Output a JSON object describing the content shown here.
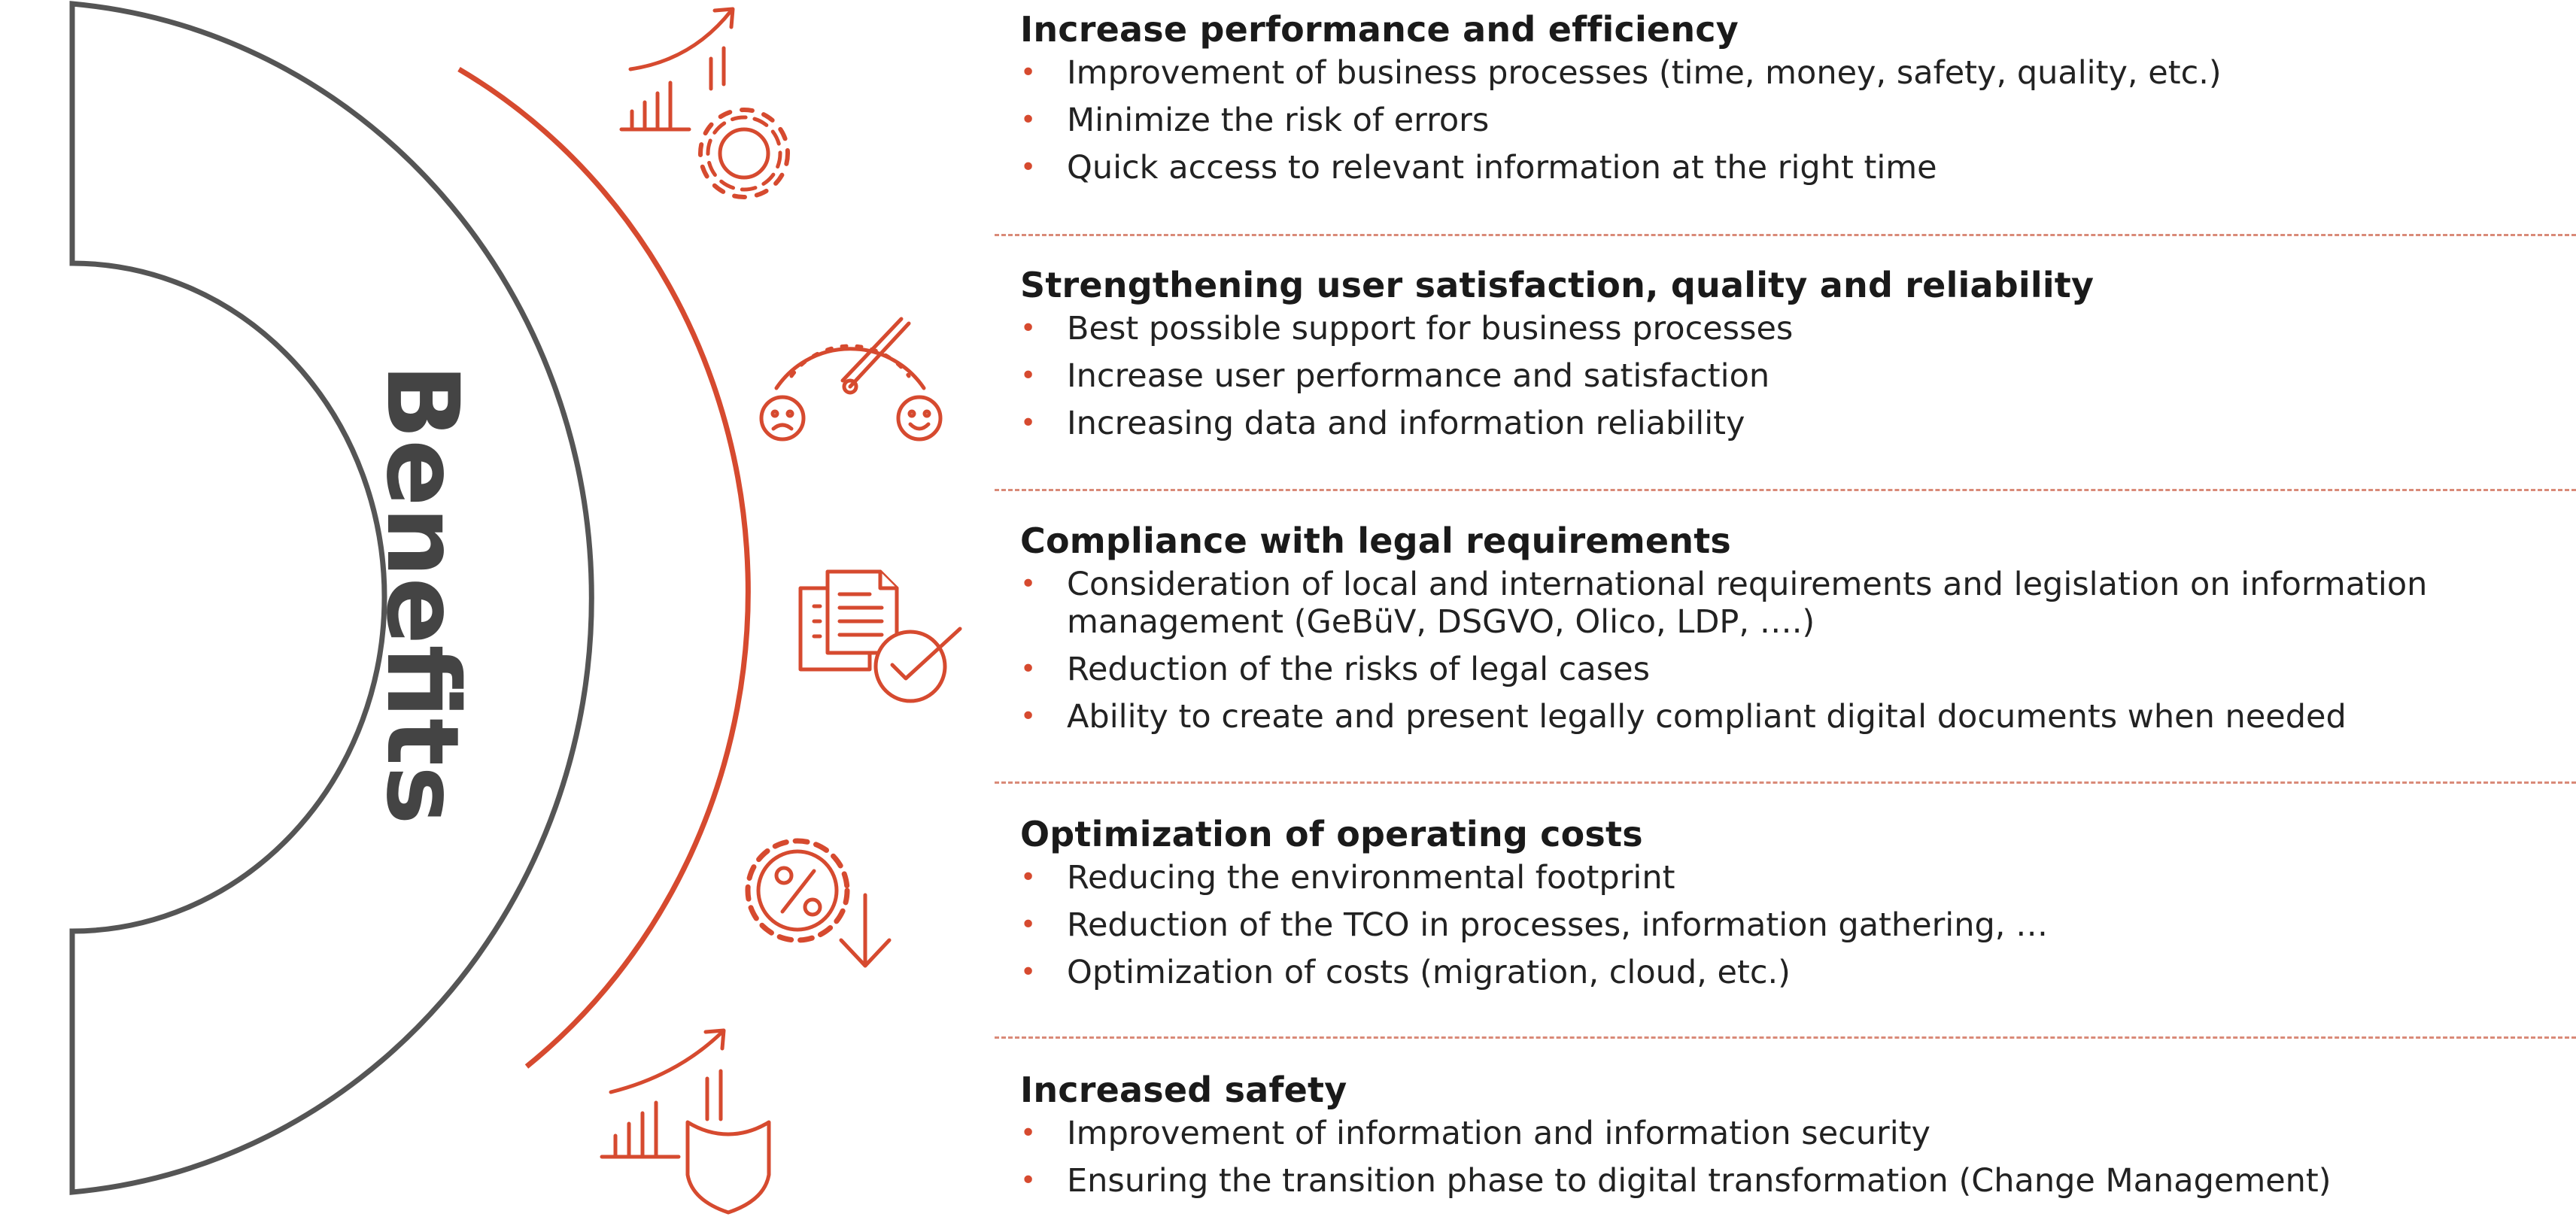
{
  "colors": {
    "accent": "#d64a2f",
    "arc": "#555555",
    "divider": "#d98a78",
    "text": "#1f1f1f"
  },
  "diagram": {
    "title": "Benefits"
  },
  "icons": [
    "growth-gear-icon",
    "speedometer-satisfaction-icon",
    "document-check-icon",
    "percent-gear-down-icon",
    "growth-shield-icon"
  ],
  "sections": [
    {
      "title": "Increase performance and efficiency",
      "bullets": [
        "Improvement of business processes (time, money, safety, quality, etc.)",
        "Minimize the risk of errors",
        "Quick access to relevant information at the right time"
      ]
    },
    {
      "title": "Strengthening user satisfaction, quality and reliability",
      "bullets": [
        "Best possible support for business processes",
        "Increase user performance and satisfaction",
        "Increasing data and information reliability"
      ]
    },
    {
      "title": "Compliance with legal requirements",
      "bullets": [
        "Consideration of local and international requirements and legislation on information management (GeBüV, DSGVO, Olico, LDP, ….)",
        "Reduction of the risks of legal cases",
        "Ability to create and present legally compliant digital documents when needed"
      ]
    },
    {
      "title": "Optimization of operating costs",
      "bullets": [
        "Reducing the environmental footprint",
        "Reduction of the TCO in processes, information gathering, …",
        "Optimization of costs (migration, cloud, etc.)"
      ]
    },
    {
      "title": "Increased safety",
      "bullets": [
        "Improvement of information and information security",
        "Ensuring the transition phase to digital transformation (Change Management)"
      ]
    }
  ]
}
